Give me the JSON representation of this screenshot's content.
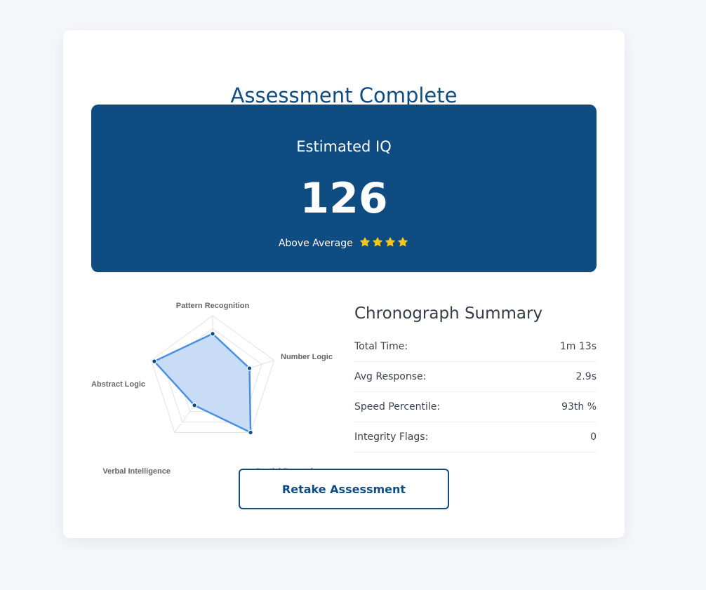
{
  "page": {
    "title": "Assessment Complete"
  },
  "result": {
    "label": "Estimated IQ",
    "score": "126",
    "rating": "Above Average",
    "stars": 4
  },
  "chart_data": {
    "type": "radar",
    "categories": [
      "Pattern Recognition",
      "Number Logic",
      "Spatial Reasoning",
      "Verbal Intelligence",
      "Abstract Logic"
    ],
    "series": [
      {
        "values": [
          72,
          60,
          100,
          48,
          95
        ]
      }
    ],
    "rlim": [
      0,
      100
    ],
    "grid": true
  },
  "summary": {
    "title": "Chronograph Summary",
    "rows": [
      {
        "label": "Total Time:",
        "value": "1m 13s"
      },
      {
        "label": "Avg Response:",
        "value": "2.9s"
      },
      {
        "label": "Speed Percentile:",
        "value": "93th %"
      },
      {
        "label": "Integrity Flags:",
        "value": "0"
      }
    ]
  },
  "actions": {
    "retake_label": "Retake Assessment"
  },
  "colors": {
    "primary": "#0f4c81",
    "radar_line": "#4a8fe0",
    "radar_fill": "#c5daf5",
    "star": "#f5c518"
  }
}
